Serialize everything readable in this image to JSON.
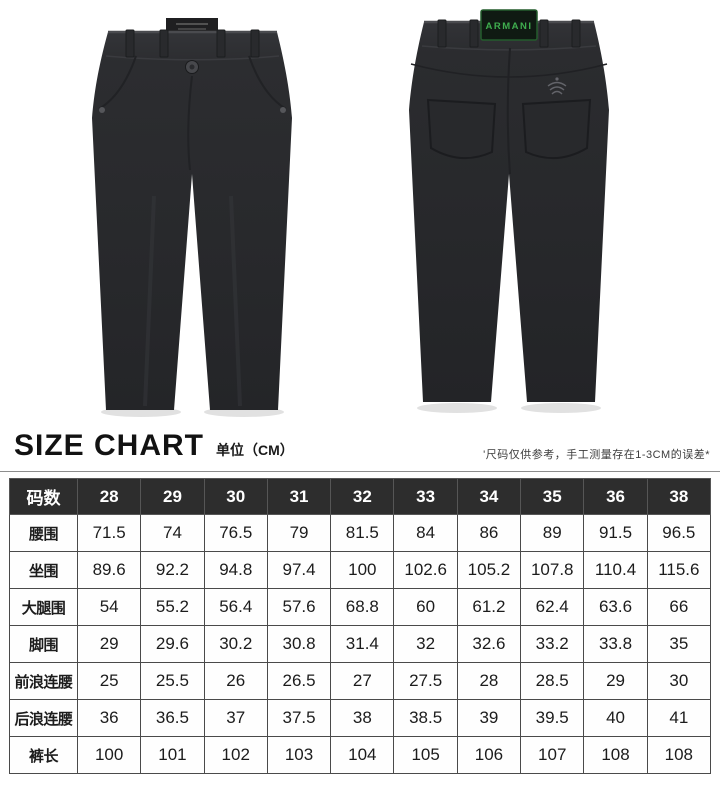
{
  "product": {
    "front_view_name": "black-trousers-front",
    "back_view_name": "black-trousers-back",
    "waist_label_text": "ARMANI",
    "label_text_color": "#3fae4e",
    "fabric_color": "#2b2c2e"
  },
  "size_chart": {
    "title": "SIZE CHART",
    "unit_label": "单位（CM）",
    "note": "'尺码仅供参考，手工测量存在1-3CM的误差*",
    "header_bg": "#2d2d2d",
    "columns": [
      "码数",
      "28",
      "29",
      "30",
      "31",
      "32",
      "33",
      "34",
      "35",
      "36",
      "38"
    ],
    "rows": [
      {
        "label": "腰围",
        "values": [
          "71.5",
          "74",
          "76.5",
          "79",
          "81.5",
          "84",
          "86",
          "89",
          "91.5",
          "96.5"
        ]
      },
      {
        "label": "坐围",
        "values": [
          "89.6",
          "92.2",
          "94.8",
          "97.4",
          "100",
          "102.6",
          "105.2",
          "107.8",
          "110.4",
          "115.6"
        ]
      },
      {
        "label": "大腿围",
        "values": [
          "54",
          "55.2",
          "56.4",
          "57.6",
          "68.8",
          "60",
          "61.2",
          "62.4",
          "63.6",
          "66"
        ]
      },
      {
        "label": "脚围",
        "values": [
          "29",
          "29.6",
          "30.2",
          "30.8",
          "31.4",
          "32",
          "32.6",
          "33.2",
          "33.8",
          "35"
        ]
      },
      {
        "label": "前浪连腰",
        "values": [
          "25",
          "25.5",
          "26",
          "26.5",
          "27",
          "27.5",
          "28",
          "28.5",
          "29",
          "30"
        ]
      },
      {
        "label": "后浪连腰",
        "values": [
          "36",
          "36.5",
          "37",
          "37.5",
          "38",
          "38.5",
          "39",
          "39.5",
          "40",
          "41"
        ]
      },
      {
        "label": "裤长",
        "values": [
          "100",
          "101",
          "102",
          "103",
          "104",
          "105",
          "106",
          "107",
          "108",
          "108"
        ]
      }
    ]
  }
}
